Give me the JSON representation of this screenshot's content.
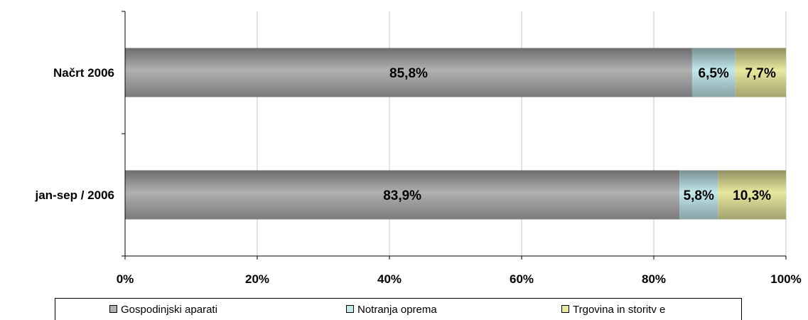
{
  "chart_data": {
    "type": "bar",
    "orientation": "horizontal",
    "stacked": true,
    "percent_stacked": true,
    "categories": [
      "Načrt 2006",
      "jan-sep / 2006"
    ],
    "series": [
      {
        "name": "Gospodinjski aparati",
        "values": [
          85.8,
          83.9
        ],
        "labels": [
          "85,8%",
          "83,9%"
        ],
        "color": "#b0b0b0",
        "legend_label": "Gospodinjski aparati"
      },
      {
        "name": "Notranja oprema",
        "values": [
          6.5,
          5.8
        ],
        "labels": [
          "6,5%",
          "5,8%"
        ],
        "color": "#c2e8ec",
        "legend_label": "Notranja oprema"
      },
      {
        "name": "Trgovina in storitve",
        "values": [
          7.7,
          10.3
        ],
        "labels": [
          "7,7%",
          "10,3%"
        ],
        "color": "#e8e89e",
        "legend_label": "Trgovina in storitv e"
      }
    ],
    "x_ticks": [
      "0%",
      "20%",
      "40%",
      "60%",
      "80%",
      "100%"
    ],
    "xlim": [
      0,
      100
    ],
    "grid": "vertical",
    "legend_position": "bottom"
  }
}
